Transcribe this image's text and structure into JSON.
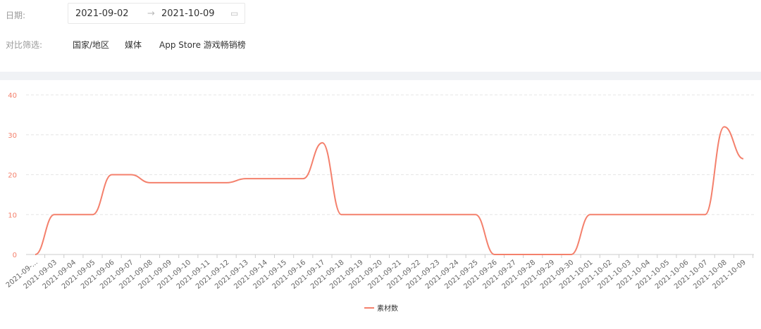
{
  "filters": {
    "date_label": "日期:",
    "start": "2021-09-02",
    "end": "2021-10-09",
    "compare_label": "对比筛选:",
    "options": [
      "国家/地区",
      "媒体",
      "App Store 游戏畅销榜"
    ]
  },
  "chart_data": {
    "type": "line",
    "categories": [
      "2021-09-...",
      "2021-09-03",
      "2021-09-04",
      "2021-09-05",
      "2021-09-06",
      "2021-09-07",
      "2021-09-08",
      "2021-09-09",
      "2021-09-10",
      "2021-09-11",
      "2021-09-12",
      "2021-09-13",
      "2021-09-14",
      "2021-09-15",
      "2021-09-16",
      "2021-09-17",
      "2021-09-18",
      "2021-09-19",
      "2021-09-20",
      "2021-09-21",
      "2021-09-22",
      "2021-09-23",
      "2021-09-24",
      "2021-09-25",
      "2021-09-26",
      "2021-09-27",
      "2021-09-28",
      "2021-09-29",
      "2021-09-30",
      "2021-10-01",
      "2021-10-02",
      "2021-10-03",
      "2021-10-04",
      "2021-10-05",
      "2021-10-06",
      "2021-10-07",
      "2021-10-08",
      "2021-10-09"
    ],
    "series": [
      {
        "name": "素材数",
        "color": "#f4806c",
        "values": [
          0,
          10,
          10,
          10,
          20,
          20,
          18,
          18,
          18,
          18,
          18,
          19,
          19,
          19,
          19,
          28,
          10,
          10,
          10,
          10,
          10,
          10,
          10,
          10,
          0,
          0,
          0,
          0,
          0,
          10,
          10,
          10,
          10,
          10,
          10,
          10,
          32,
          24
        ]
      }
    ],
    "ylim": [
      0,
      40
    ],
    "yticks": [
      0,
      10,
      20,
      30,
      40
    ],
    "grid": true,
    "legend": "bottom"
  }
}
